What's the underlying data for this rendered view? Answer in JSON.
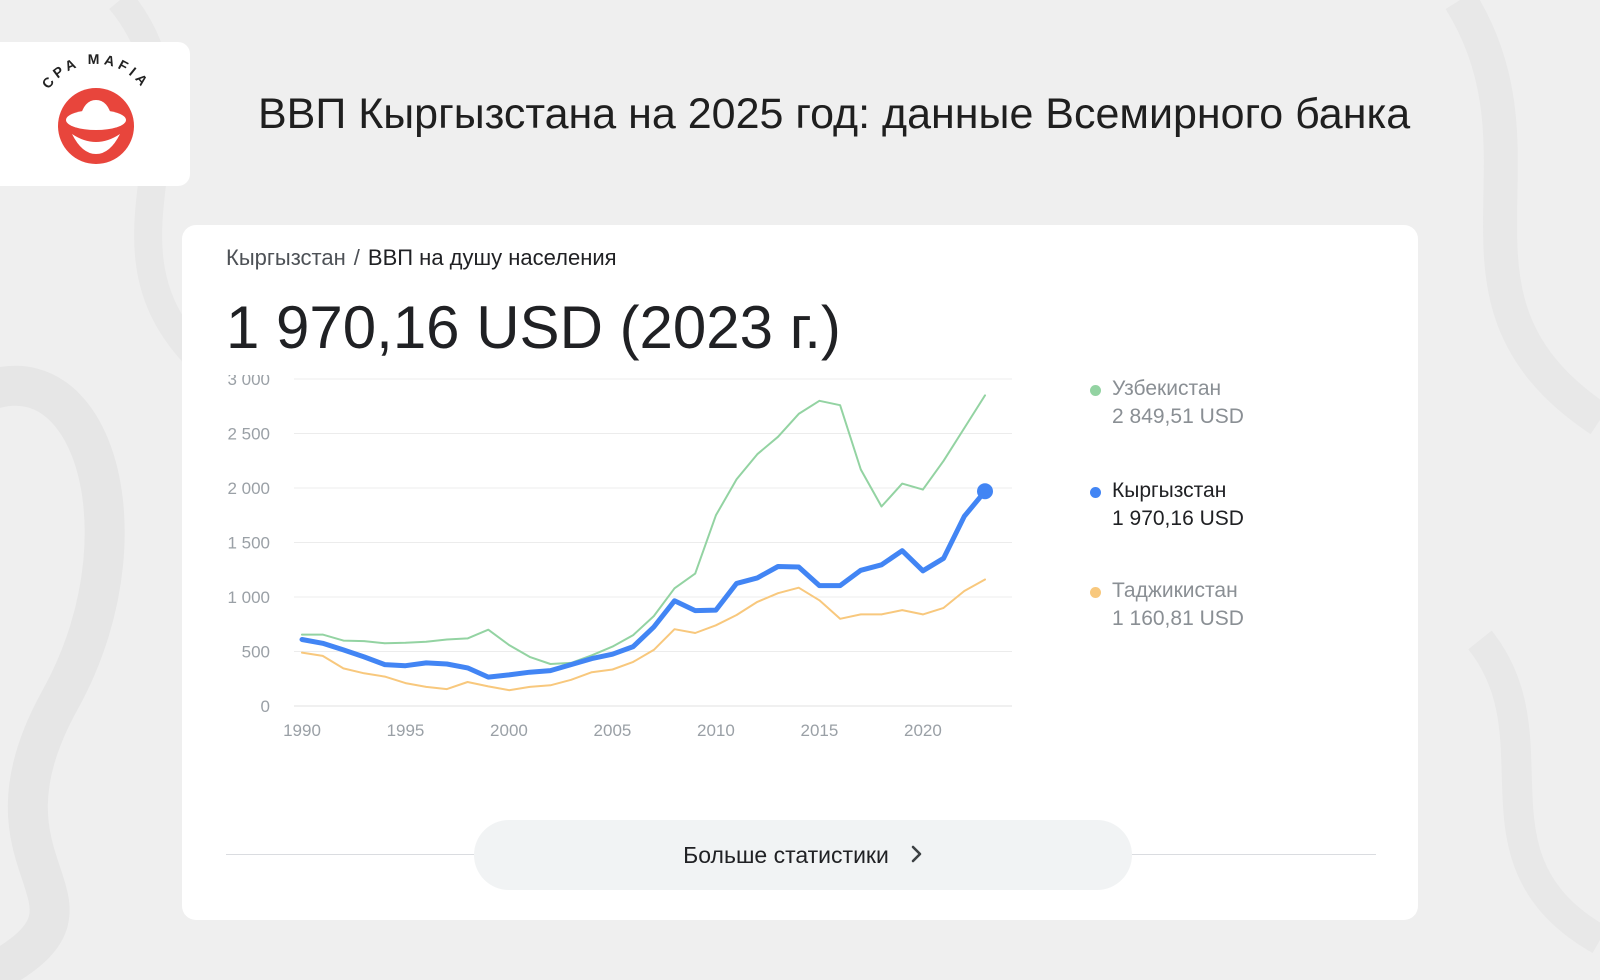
{
  "logo": {
    "text": "CPA MAFIA"
  },
  "page_title": "ВВП Кыргызстана на 2025 год: данные Всемирного банка",
  "card": {
    "breadcrumb": [
      "Кыргызстан",
      "ВВП на душу населения"
    ],
    "breadcrumb_separator": "/",
    "headline": "1 970,16 USD (2023 г.)",
    "more_button": {
      "label": "Больше статистики",
      "icon": "chevron-right-icon"
    }
  },
  "colors": {
    "background": "#efefef",
    "logo_red": "#e8453c",
    "uzbekistan": "#93d3a2",
    "kyrgyzstan": "#4285f4",
    "tajikistan": "#f8c87d"
  },
  "chart_data": {
    "type": "line",
    "x": [
      1990,
      1991,
      1992,
      1993,
      1994,
      1995,
      1996,
      1997,
      1998,
      1999,
      2000,
      2001,
      2002,
      2003,
      2004,
      2005,
      2006,
      2007,
      2008,
      2009,
      2010,
      2011,
      2012,
      2013,
      2014,
      2015,
      2016,
      2017,
      2018,
      2019,
      2020,
      2021,
      2022,
      2023
    ],
    "xticks": [
      1990,
      1995,
      2000,
      2005,
      2010,
      2015,
      2020
    ],
    "yticks": [
      0,
      500,
      1000,
      1500,
      2000,
      2500,
      3000
    ],
    "ytick_labels": [
      "0",
      "500",
      "1 000",
      "1 500",
      "2 000",
      "2 500",
      "3 000"
    ],
    "ylim": [
      0,
      3000
    ],
    "xlim": [
      1990,
      2023
    ],
    "grid": true,
    "legend_position": "right",
    "series": [
      {
        "name": "Узбекистан",
        "legend_value": "2 849,51 USD",
        "color": "#93d3a2",
        "highlight": false,
        "values": [
          655,
          655,
          600,
          595,
          575,
          580,
          590,
          610,
          620,
          700,
          560,
          450,
          385,
          395,
          465,
          545,
          650,
          825,
          1080,
          1215,
          1750,
          2080,
          2310,
          2470,
          2680,
          2800,
          2760,
          2170,
          1830,
          2040,
          1985,
          2250,
          2550,
          2849.51
        ]
      },
      {
        "name": "Кыргызстан",
        "legend_value": "1 970,16 USD",
        "color": "#4285f4",
        "highlight": true,
        "values": [
          610,
          575,
          515,
          450,
          380,
          370,
          395,
          385,
          350,
          265,
          285,
          310,
          325,
          380,
          435,
          475,
          545,
          725,
          965,
          875,
          880,
          1125,
          1175,
          1280,
          1275,
          1105,
          1105,
          1245,
          1295,
          1425,
          1240,
          1355,
          1740,
          1970.16
        ]
      },
      {
        "name": "Таджикистан",
        "legend_value": "1 160,81 USD",
        "color": "#f8c87d",
        "highlight": false,
        "values": [
          490,
          460,
          345,
          300,
          270,
          210,
          175,
          155,
          220,
          180,
          145,
          175,
          190,
          240,
          310,
          335,
          405,
          515,
          705,
          670,
          740,
          835,
          955,
          1035,
          1085,
          970,
          800,
          840,
          840,
          880,
          840,
          900,
          1055,
          1160.81
        ]
      }
    ]
  }
}
